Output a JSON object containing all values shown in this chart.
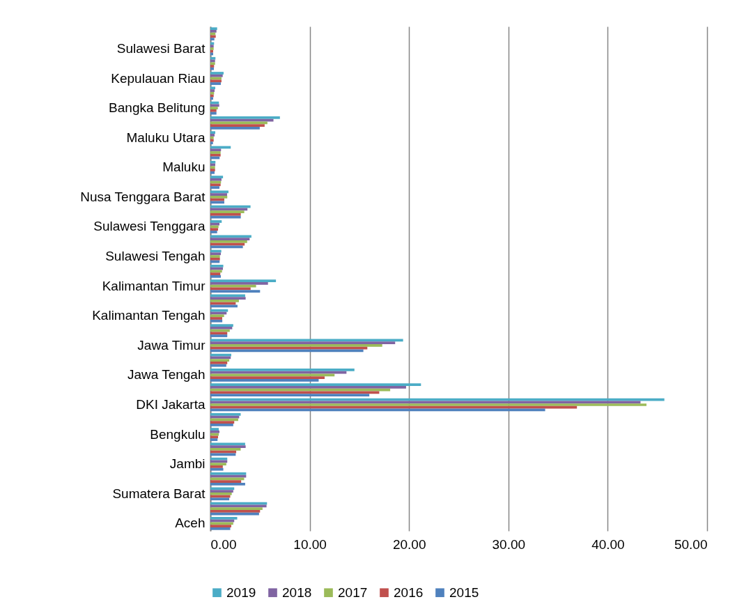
{
  "chart_data": {
    "type": "bar",
    "orientation": "horizontal",
    "categories": [
      null,
      "Sulawesi Barat",
      null,
      "Kepulauan Riau",
      null,
      "Bangka Belitung",
      null,
      "Maluku Utara",
      null,
      "Maluku",
      null,
      "Nusa Tenggara Barat",
      null,
      "Sulawesi Tenggara",
      null,
      "Sulawesi Tengah",
      null,
      "Kalimantan Timur",
      null,
      "Kalimantan Tengah",
      null,
      "Jawa Timur",
      null,
      "Jawa Tengah",
      null,
      "DKI Jakarta",
      null,
      "Bengkulu",
      null,
      "Jambi",
      null,
      "Sumatera Barat",
      null,
      "Aceh"
    ],
    "series": [
      {
        "name": "2019",
        "color": "#4bacc6",
        "values": [
          0.68,
          0.37,
          0.51,
          1.33,
          0.49,
          0.86,
          7.0,
          0.49,
          2.05,
          0.51,
          1.27,
          1.82,
          4.04,
          1.14,
          4.13,
          1.1,
          1.3,
          6.6,
          3.5,
          1.77,
          2.3,
          19.4,
          2.1,
          14.5,
          21.2,
          45.7,
          3.05,
          0.84,
          3.5,
          1.7,
          3.6,
          2.4,
          5.7,
          2.7
        ]
      },
      {
        "name": "2018",
        "color": "#8064a2",
        "values": [
          0.61,
          0.33,
          0.47,
          1.24,
          0.42,
          0.89,
          6.35,
          0.42,
          1.07,
          0.49,
          1.12,
          1.68,
          3.73,
          0.91,
          3.95,
          1.05,
          1.26,
          5.8,
          3.55,
          1.63,
          2.2,
          18.6,
          2.05,
          13.7,
          19.7,
          43.3,
          2.9,
          0.91,
          3.55,
          1.7,
          3.6,
          2.3,
          5.65,
          2.4
        ]
      },
      {
        "name": "2017",
        "color": "#9bbb59",
        "values": [
          0.51,
          0.33,
          0.47,
          1.12,
          0.37,
          0.75,
          5.74,
          0.33,
          1.03,
          0.47,
          1.07,
          1.7,
          3.41,
          0.82,
          3.7,
          0.96,
          1.17,
          4.6,
          2.87,
          1.38,
          1.95,
          17.3,
          1.9,
          12.5,
          18.1,
          43.9,
          2.8,
          0.84,
          3.05,
          1.6,
          3.4,
          2.15,
          5.25,
          2.3
        ]
      },
      {
        "name": "2016",
        "color": "#c0504d",
        "values": [
          0.54,
          0.28,
          0.37,
          1.12,
          0.33,
          0.61,
          5.46,
          0.33,
          1.03,
          0.47,
          1.03,
          1.4,
          3.06,
          0.77,
          3.45,
          0.96,
          1.0,
          4.05,
          2.55,
          1.19,
          1.7,
          15.8,
          1.7,
          11.5,
          17.0,
          36.9,
          2.4,
          0.77,
          2.6,
          1.25,
          3.1,
          2.0,
          5.0,
          2.1
        ]
      },
      {
        "name": "2015",
        "color": "#4f81bd",
        "values": [
          0.4,
          0.28,
          0.35,
          1.05,
          0.28,
          0.61,
          4.97,
          0.26,
          0.93,
          0.42,
          0.91,
          1.4,
          3.06,
          0.68,
          3.27,
          0.93,
          1.05,
          5.0,
          2.73,
          1.2,
          1.7,
          15.4,
          1.6,
          10.9,
          16.0,
          33.7,
          2.3,
          0.72,
          2.55,
          1.3,
          3.5,
          1.9,
          4.9,
          2.0
        ]
      }
    ],
    "xlim": [
      0,
      50
    ],
    "xticks": [
      {
        "value": 0,
        "label": "0.00"
      },
      {
        "value": 10,
        "label": "10.00"
      },
      {
        "value": 20,
        "label": "20.00"
      },
      {
        "value": 30,
        "label": "30.00"
      },
      {
        "value": 40,
        "label": "40.00"
      },
      {
        "value": 50,
        "label": "50.00"
      }
    ],
    "grid": "x",
    "legend": "bottom"
  }
}
